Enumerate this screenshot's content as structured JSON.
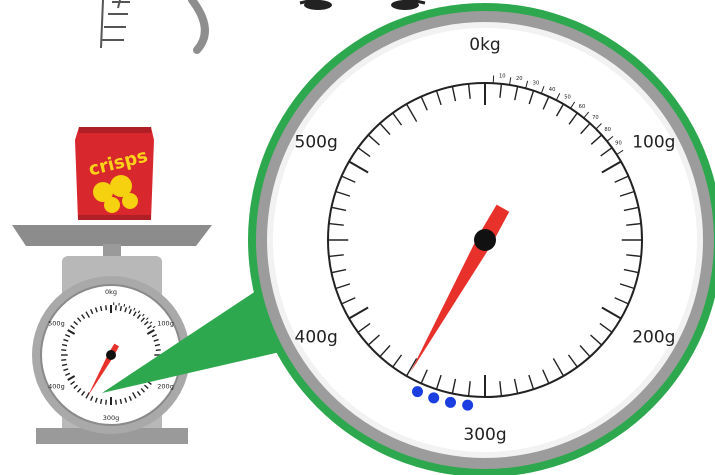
{
  "product": {
    "brand_text": "crisps",
    "bag_color": "#d9272e",
    "chip_color": "#f6d10f"
  },
  "scale": {
    "min_label": "0kg",
    "max_grams": 600,
    "major_labels": [
      "0kg",
      "100g",
      "200g",
      "300g",
      "400g",
      "500g"
    ],
    "fine_labels": [
      "10",
      "20",
      "30",
      "40",
      "50",
      "60",
      "70",
      "80",
      "90"
    ],
    "needle_reading_grams": 349,
    "accent_color": "#2ea84e",
    "needle_color": "#e8312b",
    "dot_color": "#1a3ee0",
    "dot_count": 4
  }
}
